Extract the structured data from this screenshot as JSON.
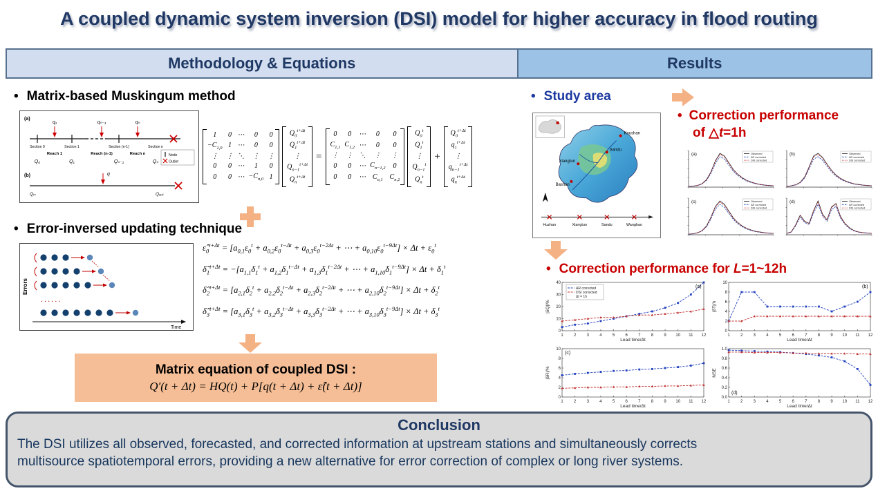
{
  "title": "A coupled dynamic system inversion (DSI) model for higher accuracy in flood routing",
  "ui": {
    "bullet": "•"
  },
  "sections": {
    "methodology": "Methodology & Equations",
    "results": "Results"
  },
  "colors": {
    "navy": "#1F3864",
    "accent_orange": "#F4B183",
    "red": "#C80000",
    "blue_heading": "#1C39A0",
    "header_left_bg": "#D2DEF0",
    "header_right_bg": "#9CC2E5",
    "conclusion_bg": "#DADADA",
    "border_slate": "#44546A",
    "dsi_box_bg": "#F5BE96"
  },
  "methodology": {
    "item1": "Matrix-based Muskingum method",
    "item2": "Error-inversed updating technique",
    "musk": {
      "panel_a": "(a)",
      "panel_b": "(b)",
      "q1": "q₁",
      "qn1": "qₙ₋₁",
      "qn": "qₙ",
      "q": "q",
      "s0": "Section 0",
      "s1": "Section 1",
      "sn1": "Section (n-1)",
      "sn": "Section n",
      "r1": "Reach 1",
      "rn1": "Reach (n-1)",
      "rn": "Reach n",
      "Q0": "Q₀",
      "Q1": "Q₁",
      "Qn1": "Qₙ₋₁",
      "Qn": "Qₙ",
      "qin": "Qᵢₙ",
      "qout": "Qₒᵤₜ",
      "legend_node": "Node",
      "legend_outlet": "Outlet"
    },
    "matrix_equation": {
      "A": [
        [
          "1",
          "0",
          "⋯",
          "0",
          "0"
        ],
        [
          "−C<sub>1,0</sub>",
          "1",
          "⋯",
          "0",
          "0"
        ],
        [
          "⋮",
          "⋮",
          "⋱",
          "⋮",
          "⋮"
        ],
        [
          "0",
          "0",
          "⋯",
          "1",
          "0"
        ],
        [
          "0",
          "0",
          "⋯",
          "−C<sub>n,0</sub>",
          "1"
        ]
      ],
      "vec_next": [
        "Q<sub>0</sub><sup>t+Δt</sup>",
        "Q<sub>1</sub><sup>t+Δt</sup>",
        "⋮",
        "Q<sub>n−1</sub><sup>t+Δt</sup>",
        "Q<sub>n</sub><sup>t+Δt</sup>"
      ],
      "equals": "=",
      "B": [
        [
          "0",
          "0",
          "⋯",
          "0",
          "0"
        ],
        [
          "C<sub>1,1</sub>",
          "C<sub>1,2</sub>",
          "⋯",
          "0",
          "0"
        ],
        [
          "⋮",
          "⋮",
          "⋱",
          "⋮",
          "⋮"
        ],
        [
          "0",
          "0",
          "⋯",
          "C<sub>n−1,2</sub>",
          "0"
        ],
        [
          "0",
          "0",
          "⋯",
          "C<sub>n,1</sub>",
          "C<sub>n,2</sub>"
        ]
      ],
      "vec_t": [
        "Q<sub>0</sub><sup>t</sup>",
        "Q<sub>1</sub><sup>t</sup>",
        "⋮",
        "Q<sub>n−1</sub><sup>t</sup>",
        "Q<sub>n</sub><sup>t</sup>"
      ],
      "plus": "+",
      "vec_q": [
        "Q<sub>0</sub><sup>t+Δt</sup>",
        "q<sub>1</sub><sup>t+Δt</sup>",
        "⋮",
        "q<sub>n−1</sub><sup>t+Δt</sup>",
        "q<sub>n</sub><sup>t+Δt</sup>"
      ]
    },
    "errors_label": "Errors",
    "time_label": "Time",
    "error_equations": [
      "ε̂<sub>0</sub><sup>t+Δt</sup> = [a<sub>0,1</sub>ε<sub>0</sub><sup>t</sup> + a<sub>0,2</sub>ε<sub>0</sub><sup>t−Δt</sup> + a<sub>0,3</sub>ε<sub>0</sub><sup>t−2Δt</sup> + ⋯ + a<sub>0,10</sub>ε<sub>0</sub><sup>t−9Δt</sup>] × Δt + ε<sub>0</sub><sup>t</sup>",
      "δ̂<sub>1</sub><sup>t+Δt</sup> = −[a<sub>1,1</sub>δ<sub>1</sub><sup>t</sup> + a<sub>1,2</sub>δ<sub>1</sub><sup>t−Δt</sup> + a<sub>1,3</sub>δ<sub>1</sub><sup>t−2Δt</sup> + ⋯ + a<sub>1,10</sub>δ<sub>1</sub><sup>t−9Δt</sup>] × Δt + δ<sub>1</sub><sup>t</sup>",
      "δ̂<sub>2</sub><sup>t+Δt</sup> = [a<sub>2,1</sub>δ<sub>2</sub><sup>t</sup> + a<sub>2,2</sub>δ<sub>2</sub><sup>t−Δt</sup> + a<sub>2,3</sub>δ<sub>2</sub><sup>t−2Δt</sup> + ⋯ + a<sub>2,10</sub>δ<sub>2</sub><sup>t−9Δt</sup>] × Δt + δ<sub>2</sub><sup>t</sup>",
      "δ̂<sub>3</sub><sup>t+Δt</sup> = [a<sub>3,1</sub>δ<sub>3</sub><sup>t</sup> + a<sub>3,2</sub>δ<sub>3</sub><sup>t−Δt</sup> + a<sub>3,3</sub>δ<sub>3</sub><sup>t−2Δt</sup> + ⋯ + a<sub>3,10</sub>δ<sub>3</sub><sup>t−9Δt</sup>] × Δt + δ<sub>3</sub><sup>t</sup>"
    ],
    "dsi_box_title": "Matrix equation of coupled DSI :",
    "dsi_equation": "Q′(t + Δt) = HQ(t) + P[q(t + Δt) + ε̂(t + Δt)]"
  },
  "results": {
    "study_area": "Study area",
    "perf1_line1": "Correction performance",
    "perf1_line2": "of △<i>t</i>=1h",
    "perf2": "Correction performance for <i>L</i>=1~12h",
    "map": {
      "stations": {
        "koushan": "Koushan",
        "sandu": "Sandu",
        "xiangtun": "Xiangtun",
        "bashan": "Bashan"
      },
      "schematic": [
        "Huzhan",
        "Xiangtun",
        "Sandu",
        "Wanghao"
      ]
    },
    "legend": {
      "observed": "Observed",
      "ar": "AR corrected",
      "dsi": "DSI corrected"
    },
    "hydro_charts": [
      {
        "panel": "(a)",
        "values": [
          2,
          3,
          5,
          10,
          22,
          45,
          78,
          100,
          92,
          72,
          52,
          38,
          28,
          20,
          15,
          11,
          8,
          6,
          5,
          4
        ]
      },
      {
        "panel": "(b)",
        "values": [
          2,
          4,
          7,
          14,
          30,
          60,
          92,
          100,
          88,
          68,
          50,
          36,
          26,
          19,
          14,
          10,
          8,
          6,
          5,
          4
        ]
      },
      {
        "panel": "(c)",
        "values": [
          2,
          3,
          6,
          12,
          26,
          52,
          84,
          100,
          90,
          70,
          50,
          36,
          26,
          19,
          14,
          10,
          8,
          6,
          5,
          4
        ]
      },
      {
        "panel": "(d)",
        "values": [
          4,
          8,
          28,
          55,
          38,
          32,
          68,
          95,
          58,
          42,
          78,
          88,
          52,
          32,
          20,
          12,
          8,
          6,
          5,
          4
        ]
      }
    ]
  },
  "chart_data": [
    {
      "type": "line",
      "panel": "(a)",
      "xlabel": "Lead time/Δt",
      "ylabel": "|δQ|/%",
      "x": [
        1,
        2,
        3,
        4,
        5,
        6,
        7,
        8,
        9,
        10,
        11,
        12
      ],
      "ylim": [
        0,
        40
      ],
      "yticks": [
        0,
        10,
        20,
        30,
        40
      ],
      "label_pos": "tr",
      "legend": true,
      "note": "Δt = 1h",
      "series": [
        {
          "name": "AR corrected",
          "color": "#1f3fbf",
          "values": [
            3,
            5,
            6,
            8,
            10,
            12,
            14,
            16,
            19,
            23,
            30,
            40
          ]
        },
        {
          "name": "DSI corrected",
          "color": "#c03030",
          "values": [
            8,
            9,
            10,
            11,
            11,
            12,
            13,
            13,
            14,
            15,
            16,
            18
          ]
        }
      ]
    },
    {
      "type": "line",
      "panel": "(b)",
      "xlabel": "Lead time/Δt",
      "ylabel": "|δT|/h",
      "x": [
        1,
        2,
        3,
        4,
        5,
        6,
        7,
        8,
        9,
        10,
        11,
        12
      ],
      "ylim": [
        0,
        10
      ],
      "yticks": [
        0,
        2,
        4,
        6,
        8,
        10
      ],
      "label_pos": "tr",
      "legend": false,
      "series": [
        {
          "name": "AR corrected",
          "color": "#1f3fbf",
          "values": [
            2,
            8,
            8,
            5,
            5,
            5,
            5,
            5,
            4,
            5,
            6,
            8
          ]
        },
        {
          "name": "DSI corrected",
          "color": "#c03030",
          "values": [
            2,
            2,
            3,
            3,
            3,
            3,
            3,
            3,
            3,
            3,
            3,
            3
          ]
        }
      ]
    },
    {
      "type": "line",
      "panel": "(c)",
      "xlabel": "Lead time/Δt",
      "ylabel": "|δR|/%",
      "x": [
        1,
        2,
        3,
        4,
        5,
        6,
        7,
        8,
        9,
        10,
        11,
        12
      ],
      "ylim": [
        0,
        10
      ],
      "yticks": [
        0,
        2,
        4,
        6,
        8,
        10
      ],
      "label_pos": "tl",
      "legend": false,
      "series": [
        {
          "name": "AR corrected",
          "color": "#1f3fbf",
          "values": [
            4.5,
            4.8,
            5,
            5.2,
            5.4,
            5.5,
            5.7,
            5.8,
            6,
            6.2,
            6.5,
            7
          ]
        },
        {
          "name": "DSI corrected",
          "color": "#c03030",
          "values": [
            1.8,
            1.9,
            2,
            2,
            2.1,
            2.1,
            2.2,
            2.2,
            2.3,
            2.3,
            2.4,
            2.5
          ]
        }
      ]
    },
    {
      "type": "line",
      "panel": "(d)",
      "xlabel": "Lead time/Δt",
      "ylabel": "NSE",
      "x": [
        1,
        2,
        3,
        4,
        5,
        6,
        7,
        8,
        9,
        10,
        11,
        12
      ],
      "ylim": [
        0,
        1
      ],
      "yticks": [
        0,
        0.2,
        0.4,
        0.6,
        0.8,
        1
      ],
      "ytick_labels": [
        "0.0",
        "0.2",
        "0.4",
        "0.6",
        "0.8",
        "1.0"
      ],
      "label_pos": "bl",
      "legend": false,
      "series": [
        {
          "name": "AR corrected",
          "color": "#1f3fbf",
          "values": [
            0.97,
            0.96,
            0.95,
            0.94,
            0.93,
            0.91,
            0.89,
            0.86,
            0.82,
            0.74,
            0.58,
            0.25
          ]
        },
        {
          "name": "DSI corrected",
          "color": "#c03030",
          "values": [
            0.93,
            0.93,
            0.92,
            0.92,
            0.92,
            0.91,
            0.91,
            0.9,
            0.9,
            0.9,
            0.89,
            0.89
          ]
        }
      ]
    }
  ],
  "conclusion": {
    "title": "Conclusion",
    "text_html": "The DSI utilizes all observed, forecasted, and corrected information at upstream stations and simultaneously corrects<br>multisource spatiotemporal errors, providing a new alternative for error correction of complex or long river systems."
  }
}
